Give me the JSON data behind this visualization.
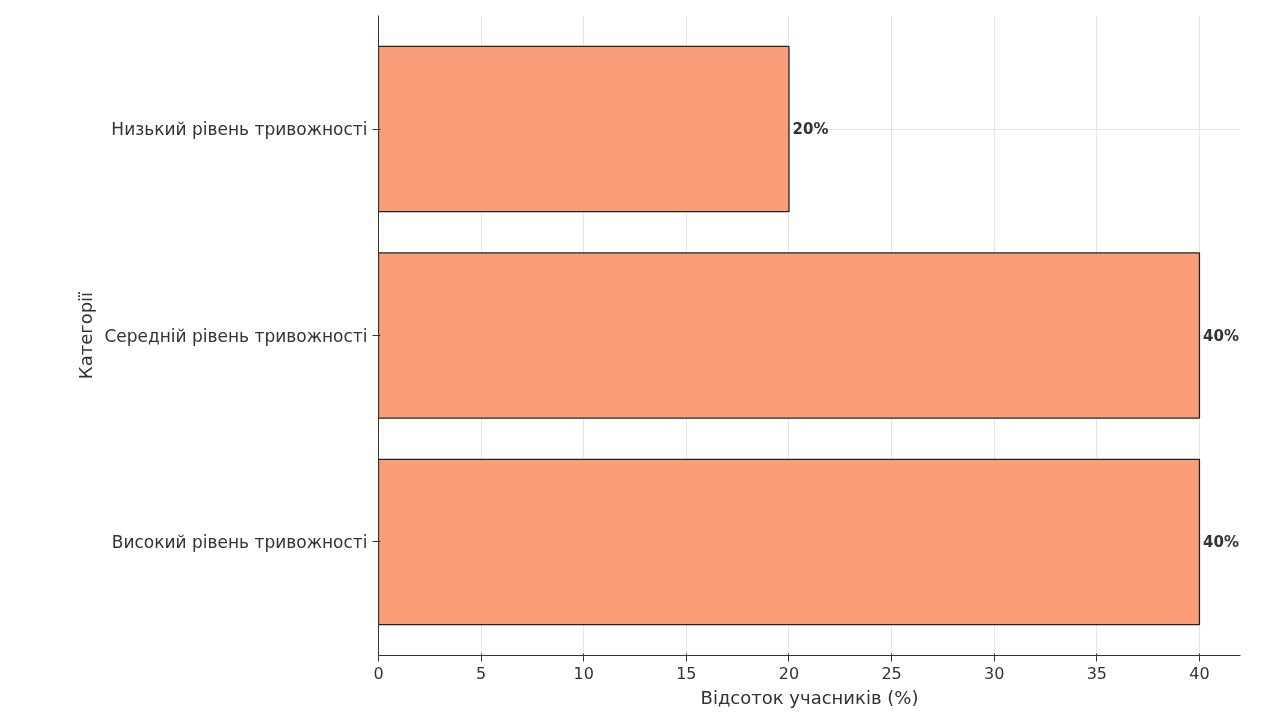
{
  "chart_data": {
    "type": "bar",
    "orientation": "horizontal",
    "xlabel": "Відсоток учасників (%)",
    "ylabel": "Категорії",
    "categories": [
      "Низький рівень тривожності",
      "Середній рівень тривожності",
      "Високий рівень тривожності"
    ],
    "values": [
      20,
      40,
      40
    ],
    "color": "#fa9e7a",
    "value_labels": [
      "20%",
      "40%",
      "40%"
    ],
    "xlim": [
      0,
      42
    ],
    "xticks": [
      0,
      5,
      10,
      15,
      20,
      25,
      30,
      35,
      40
    ],
    "grid": true
  }
}
